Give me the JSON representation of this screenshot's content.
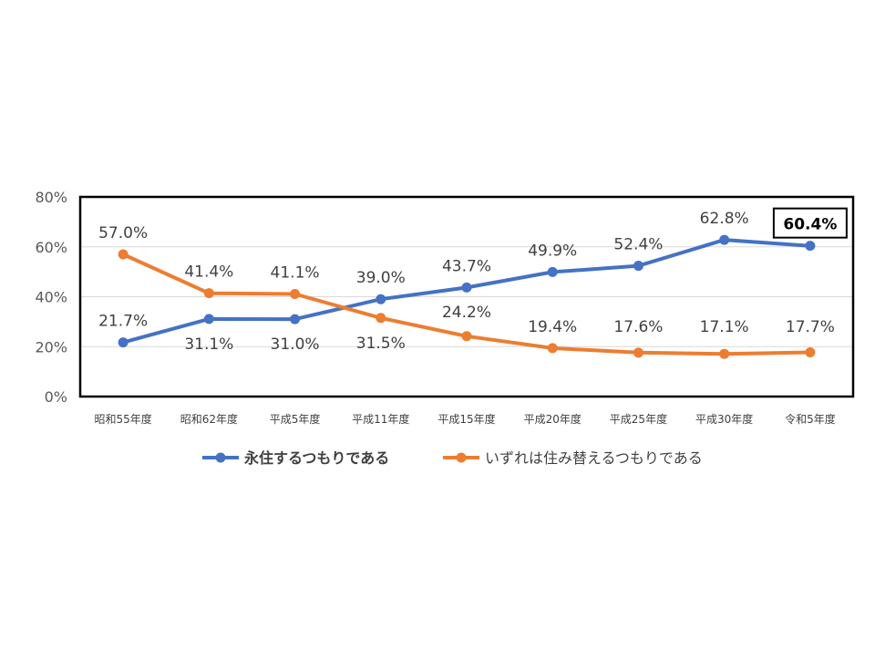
{
  "chart_data": {
    "type": "line",
    "categories": [
      "昭和55年度",
      "昭和62年度",
      "平成5年度",
      "平成11年度",
      "平成15年度",
      "平成20年度",
      "平成25年度",
      "平成30年度",
      "令和5年度"
    ],
    "series": [
      {
        "name": "永住するつもりである",
        "values": [
          21.7,
          31.1,
          31.0,
          39.0,
          43.7,
          49.9,
          52.4,
          62.8,
          60.4
        ],
        "labels": [
          "21.7%",
          "31.1%",
          "31.0%",
          "39.0%",
          "43.7%",
          "49.9%",
          "52.4%",
          "62.8%",
          "60.4%"
        ],
        "color": "#4472C4",
        "legend_bold": true
      },
      {
        "name": "いずれは住み替えるつもりである",
        "values": [
          57.0,
          41.4,
          41.1,
          31.5,
          24.2,
          19.4,
          17.6,
          17.1,
          17.7
        ],
        "labels": [
          "57.0%",
          "41.4%",
          "41.1%",
          "31.5%",
          "24.2%",
          "19.4%",
          "17.6%",
          "17.1%",
          "17.7%"
        ],
        "color": "#ED7D31",
        "legend_bold": false
      }
    ],
    "y_ticks": [
      "0%",
      "20%",
      "40%",
      "60%",
      "80%"
    ],
    "ylim": [
      0,
      80
    ],
    "grid": true,
    "legend": "bottom",
    "highlight": {
      "series": 0,
      "index": 8
    },
    "title": "",
    "xlabel": "",
    "ylabel": ""
  }
}
